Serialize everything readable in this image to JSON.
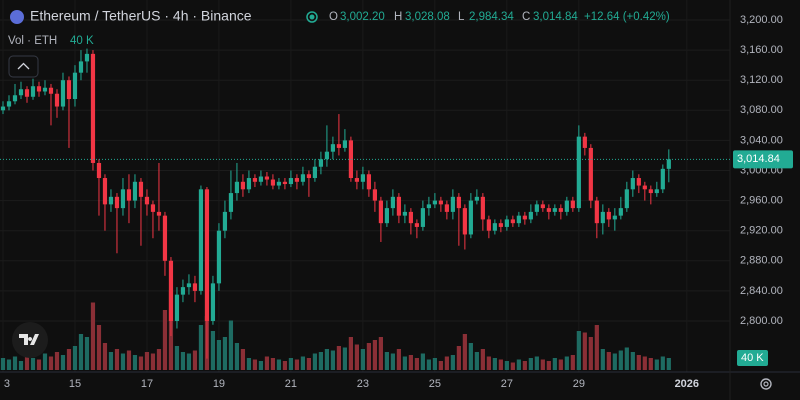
{
  "chart_data": {
    "type": "candlestick",
    "title": "Ethereum / TetherUS · 4h · Binance",
    "legend_values": [
      {
        "key": "O",
        "value": 3002.2,
        "label": "3,002.20"
      },
      {
        "key": "H",
        "value": 3028.08,
        "label": "3,028.08"
      },
      {
        "key": "L",
        "value": 2984.34,
        "label": "2,984.34"
      },
      {
        "key": "C",
        "value": 3014.84,
        "label": "3,014.84"
      }
    ],
    "change": {
      "value": 12.64,
      "label": "+12.64 (+0.42%)"
    },
    "volume_title": "Vol · ETH",
    "volume_label": {
      "value": 40,
      "label": "40 K"
    },
    "price_label": {
      "value": 3014.84,
      "label": "3,014.84"
    },
    "up_color": "#22ab94",
    "down_color": "#f23645",
    "volume_up_color": "#1e6b62",
    "volume_down_color": "#8a2f36",
    "open": [
      3080,
      3085,
      3092,
      3100,
      3108,
      3098,
      3112,
      3105,
      3110,
      3102,
      3085,
      3120,
      3095,
      3130,
      3145,
      3155,
      3010,
      2990,
      2955,
      2965,
      2950,
      2975,
      2960,
      2985,
      2965,
      2955,
      2945,
      2940,
      2880,
      2800,
      2835,
      2845,
      2850,
      2840,
      2975,
      2800,
      2850,
      2920,
      2945,
      2970,
      2985,
      2975,
      2990,
      2985,
      2992,
      2988,
      2980,
      2985,
      2982,
      2990,
      2985,
      2995,
      2990,
      3005,
      3015,
      3025,
      3035,
      3030,
      3040,
      2990,
      2985,
      2995,
      2975,
      2960,
      2930,
      2950,
      2965,
      2940,
      2945,
      2930,
      2925,
      2950,
      2955,
      2960,
      2955,
      2945,
      2965,
      2950,
      2915,
      2960,
      2965,
      2935,
      2920,
      2930,
      2925,
      2935,
      2930,
      2940,
      2935,
      2945,
      2955,
      2950,
      2945,
      2950,
      2945,
      2960,
      2950,
      3045,
      3030,
      2960,
      2930,
      2945,
      2935,
      2940,
      2950,
      2975,
      2990,
      2980,
      2975,
      2970,
      2975,
      3002.2
    ],
    "high": [
      3092,
      3100,
      3115,
      3118,
      3112,
      3122,
      3118,
      3120,
      3115,
      3108,
      3130,
      3125,
      3140,
      3160,
      3162,
      3160,
      3015,
      2995,
      2975,
      2970,
      2990,
      2995,
      2995,
      2990,
      2975,
      2960,
      3010,
      2945,
      2885,
      2845,
      2855,
      2862,
      2860,
      2980,
      2978,
      2860,
      2930,
      2960,
      3000,
      3010,
      2995,
      3000,
      2995,
      3000,
      2998,
      2995,
      2990,
      2990,
      3000,
      2995,
      3005,
      3000,
      3015,
      3025,
      3060,
      3045,
      3075,
      3055,
      3045,
      3000,
      3005,
      3000,
      2985,
      2965,
      2960,
      2975,
      2970,
      2955,
      2950,
      2935,
      2960,
      2965,
      2970,
      2965,
      2960,
      2975,
      2970,
      2955,
      2970,
      2975,
      2970,
      2940,
      2935,
      2935,
      2940,
      2940,
      2945,
      2945,
      2955,
      2960,
      2960,
      2955,
      2955,
      2955,
      2965,
      2965,
      3060,
      3050,
      3035,
      2965,
      2955,
      2950,
      2950,
      2965,
      2985,
      3000,
      2995,
      2985,
      2980,
      2985,
      3008,
      3028.08
    ],
    "low": [
      3075,
      3080,
      3088,
      3095,
      3090,
      3094,
      3098,
      3100,
      3060,
      3070,
      3080,
      3030,
      3085,
      3120,
      3130,
      3000,
      2940,
      2920,
      2945,
      2890,
      2940,
      2930,
      2950,
      2900,
      2940,
      2910,
      2920,
      2860,
      2780,
      2790,
      2825,
      2835,
      2825,
      2835,
      2750,
      2795,
      2840,
      2910,
      2935,
      2960,
      2965,
      2970,
      2978,
      2980,
      2980,
      2975,
      2975,
      2975,
      2978,
      2975,
      2980,
      2965,
      2985,
      2995,
      3005,
      3015,
      3020,
      3025,
      2985,
      2975,
      2975,
      2965,
      2945,
      2905,
      2925,
      2940,
      2930,
      2930,
      2915,
      2910,
      2920,
      2940,
      2950,
      2945,
      2935,
      2935,
      2900,
      2895,
      2910,
      2955,
      2920,
      2910,
      2915,
      2918,
      2920,
      2925,
      2925,
      2928,
      2930,
      2940,
      2945,
      2935,
      2940,
      2935,
      2940,
      2945,
      2945,
      3020,
      2950,
      2910,
      2915,
      2925,
      2920,
      2935,
      2945,
      2965,
      2970,
      2960,
      2955,
      2965,
      2970,
      2984.34
    ],
    "close": [
      3085,
      3092,
      3100,
      3108,
      3098,
      3112,
      3105,
      3110,
      3102,
      3085,
      3120,
      3095,
      3130,
      3145,
      3155,
      3010,
      2990,
      2955,
      2965,
      2950,
      2975,
      2960,
      2985,
      2965,
      2955,
      2945,
      2940,
      2880,
      2800,
      2835,
      2845,
      2850,
      2840,
      2975,
      2800,
      2850,
      2920,
      2945,
      2970,
      2985,
      2975,
      2990,
      2985,
      2992,
      2988,
      2980,
      2985,
      2982,
      2990,
      2985,
      2995,
      2990,
      3005,
      3015,
      3025,
      3035,
      3030,
      3040,
      2990,
      2985,
      2995,
      2975,
      2960,
      2930,
      2950,
      2965,
      2940,
      2945,
      2930,
      2925,
      2950,
      2955,
      2960,
      2955,
      2945,
      2965,
      2950,
      2915,
      2960,
      2965,
      2935,
      2920,
      2930,
      2925,
      2935,
      2930,
      2940,
      2935,
      2945,
      2955,
      2950,
      2945,
      2950,
      2945,
      2960,
      2950,
      3045,
      3030,
      2960,
      2930,
      2945,
      2935,
      2940,
      2950,
      2975,
      2990,
      2980,
      2975,
      2970,
      2975,
      3002.2,
      3014.84
    ],
    "volume": [
      40,
      35,
      45,
      30,
      50,
      40,
      35,
      55,
      45,
      60,
      50,
      70,
      80,
      120,
      110,
      225,
      150,
      90,
      60,
      70,
      55,
      65,
      50,
      45,
      60,
      55,
      70,
      200,
      265,
      80,
      60,
      55,
      65,
      150,
      180,
      130,
      100,
      110,
      165,
      90,
      70,
      40,
      35,
      30,
      45,
      40,
      35,
      30,
      40,
      35,
      45,
      40,
      55,
      60,
      70,
      65,
      80,
      75,
      110,
      85,
      70,
      90,
      100,
      110,
      60,
      55,
      70,
      45,
      50,
      40,
      55,
      35,
      40,
      30,
      45,
      50,
      80,
      120,
      90,
      60,
      70,
      45,
      40,
      35,
      30,
      25,
      35,
      30,
      40,
      45,
      35,
      30,
      40,
      35,
      45,
      50,
      130,
      125,
      110,
      150,
      70,
      60,
      55,
      65,
      75,
      60,
      50,
      45,
      40,
      35,
      45,
      40
    ],
    "xlim": [
      -0.5,
      121.2
    ],
    "xticks": [
      {
        "value": 0,
        "label": "3"
      },
      {
        "value": 12,
        "label": "15"
      },
      {
        "value": 24,
        "label": "17"
      },
      {
        "value": 36,
        "label": "19"
      },
      {
        "value": 48,
        "label": "21"
      },
      {
        "value": 60,
        "label": "23"
      },
      {
        "value": 72,
        "label": "25"
      },
      {
        "value": 84,
        "label": "27"
      },
      {
        "value": 96,
        "label": "29"
      },
      {
        "value": 114,
        "label": "2026"
      }
    ],
    "ylim": [
      2732.2,
      3226.6
    ],
    "yticks": [
      {
        "value": 2800,
        "label": "2,800.00"
      },
      {
        "value": 2840,
        "label": "2,840.00"
      },
      {
        "value": 2880,
        "label": "2,880.00"
      },
      {
        "value": 2920,
        "label": "2,920.00"
      },
      {
        "value": 2960,
        "label": "2,960.00"
      },
      {
        "value": 3000,
        "label": "3,000.00"
      },
      {
        "value": 3040,
        "label": "3,040.00"
      },
      {
        "value": 3080,
        "label": "3,080.00"
      },
      {
        "value": 3120,
        "label": "3,120.00"
      },
      {
        "value": 3160,
        "label": "3,160.00"
      },
      {
        "value": 3200,
        "label": "3,200.00"
      }
    ],
    "vlim": [
      0,
      400
    ],
    "grid": true
  }
}
